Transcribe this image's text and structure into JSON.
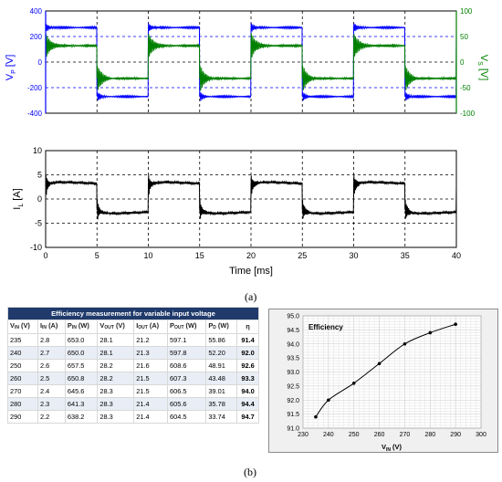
{
  "figure_a": {
    "caption": "(a)",
    "top_plot": {
      "ylabel_left_main": "V",
      "ylabel_left_sub": "P",
      "ylabel_left_unit": "[V]",
      "ylabel_right_main": "V",
      "ylabel_right_sub": "S",
      "ylabel_right_unit": "[V]",
      "left_ticks": [
        "400",
        "200",
        "0",
        "-200",
        "-400"
      ],
      "right_ticks": [
        "100",
        "50",
        "0",
        "-50",
        "-100"
      ],
      "colors": {
        "vp": "#0000ff",
        "vs": "#008000"
      }
    },
    "bottom_plot": {
      "ylabel_main": "I",
      "ylabel_sub": "L",
      "ylabel_unit": "[A]",
      "xlabel": "Time [ms]",
      "y_ticks": [
        "10",
        "5",
        "0",
        "-5",
        "-10"
      ],
      "x_ticks": [
        "0",
        "5",
        "10",
        "15",
        "20",
        "25",
        "30",
        "35",
        "40"
      ]
    }
  },
  "chart_data": [
    {
      "type": "line",
      "x": [
        0,
        40
      ],
      "xlim": [
        0,
        40
      ],
      "ylim": [
        -400,
        400
      ],
      "y2lim": [
        -100,
        100
      ],
      "series": [
        {
          "name": "V_P",
          "axis": "left",
          "period_ms": 10,
          "levels_V": [
            270,
            -270
          ]
        },
        {
          "name": "V_S",
          "axis": "right",
          "period_ms": 10,
          "levels_V": [
            32,
            -32
          ]
        }
      ],
      "grid": true
    },
    {
      "type": "line",
      "xlabel": "Time [ms]",
      "ylabel": "I_L [A]",
      "xlim": [
        0,
        40
      ],
      "ylim": [
        -10,
        10
      ],
      "series": [
        {
          "name": "I_L",
          "period_ms": 10,
          "levels_A": [
            2.5,
            -2.5
          ]
        }
      ],
      "grid": true
    },
    {
      "type": "line",
      "title": "Efficiency",
      "xlabel": "V_IN (V)",
      "x": [
        235,
        240,
        250,
        260,
        270,
        280,
        290
      ],
      "series": [
        {
          "values": [
            91.4,
            92.0,
            92.6,
            93.3,
            94.0,
            94.4,
            94.7
          ]
        }
      ],
      "xlim": [
        230,
        300
      ],
      "ylim": [
        91.0,
        95.0
      ],
      "x_ticks": [
        "230",
        "240",
        "250",
        "260",
        "270",
        "280",
        "290",
        "300"
      ],
      "y_ticks": [
        "95.0",
        "94.5",
        "94.0",
        "93.5",
        "93.0",
        "92.5",
        "92.0",
        "91.5",
        "91.0"
      ],
      "grid": true
    }
  ],
  "table": {
    "title": "Efficiency measurement for variable input voltage",
    "headers": [
      {
        "main": "V",
        "sub": "IN",
        "unit": " (V)"
      },
      {
        "main": "I",
        "sub": "IN",
        "unit": " (A)"
      },
      {
        "main": "P",
        "sub": "IN",
        "unit": " (W)"
      },
      {
        "main": "V",
        "sub": "OUT",
        "unit": " (V)"
      },
      {
        "main": "I",
        "sub": "OUT",
        "unit": " (A)"
      },
      {
        "main": "P",
        "sub": "OUT",
        "unit": " (W)"
      },
      {
        "main": "P",
        "sub": "D",
        "unit": " (W)"
      },
      {
        "main": "η",
        "sub": "",
        "unit": ""
      }
    ],
    "rows": [
      [
        "235",
        "2.8",
        "653.0",
        "28.1",
        "21.2",
        "597.1",
        "55.86",
        "91.4"
      ],
      [
        "240",
        "2.7",
        "650.0",
        "28.1",
        "21.3",
        "597.8",
        "52.20",
        "92.0"
      ],
      [
        "250",
        "2.6",
        "657.5",
        "28.2",
        "21.6",
        "608.6",
        "48.91",
        "92.6"
      ],
      [
        "260",
        "2.5",
        "650.8",
        "28.2",
        "21.5",
        "607.3",
        "43.48",
        "93.3"
      ],
      [
        "270",
        "2.4",
        "645.6",
        "28.3",
        "21.5",
        "606.5",
        "39.01",
        "94.0"
      ],
      [
        "280",
        "2.3",
        "641.3",
        "28.3",
        "21.4",
        "605.6",
        "35.78",
        "94.4"
      ],
      [
        "290",
        "2.2",
        "638.2",
        "28.3",
        "21.4",
        "604.5",
        "33.74",
        "94.7"
      ]
    ]
  },
  "efficiency_chart": {
    "title": "Efficiency",
    "xlabel_main": "V",
    "xlabel_sub": "IN",
    "xlabel_unit": " (V)"
  },
  "figure_b": {
    "caption": "(b)"
  }
}
